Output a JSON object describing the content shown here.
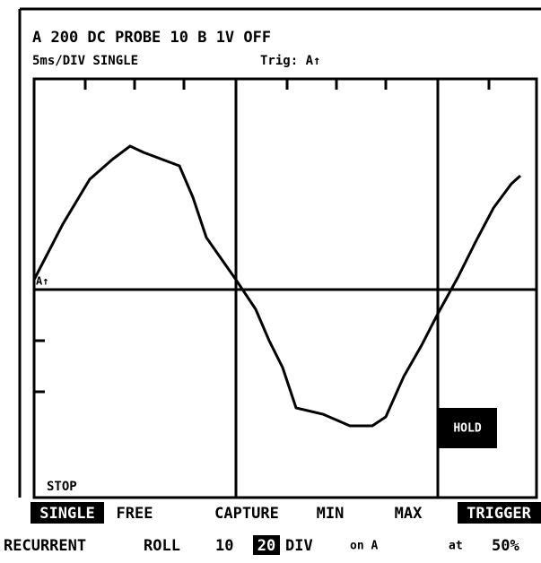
{
  "header": {
    "line1": "A 200 DC PROBE 10 B 1V OFF",
    "timebase": "5ms/DIV SINGLE",
    "trigger": "Trig: A↑"
  },
  "screen": {
    "trigger_marker": "A↑",
    "status": "STOP",
    "badge": "HOLD"
  },
  "menu": {
    "row1": [
      "SINGLE",
      "FREE",
      "CAPTURE",
      "MIN",
      "MAX",
      "TRIGGER"
    ],
    "row2": [
      "RECURRENT",
      "ROLL",
      "10",
      "20",
      "DIV",
      "on A",
      "at",
      "50%"
    ]
  }
}
